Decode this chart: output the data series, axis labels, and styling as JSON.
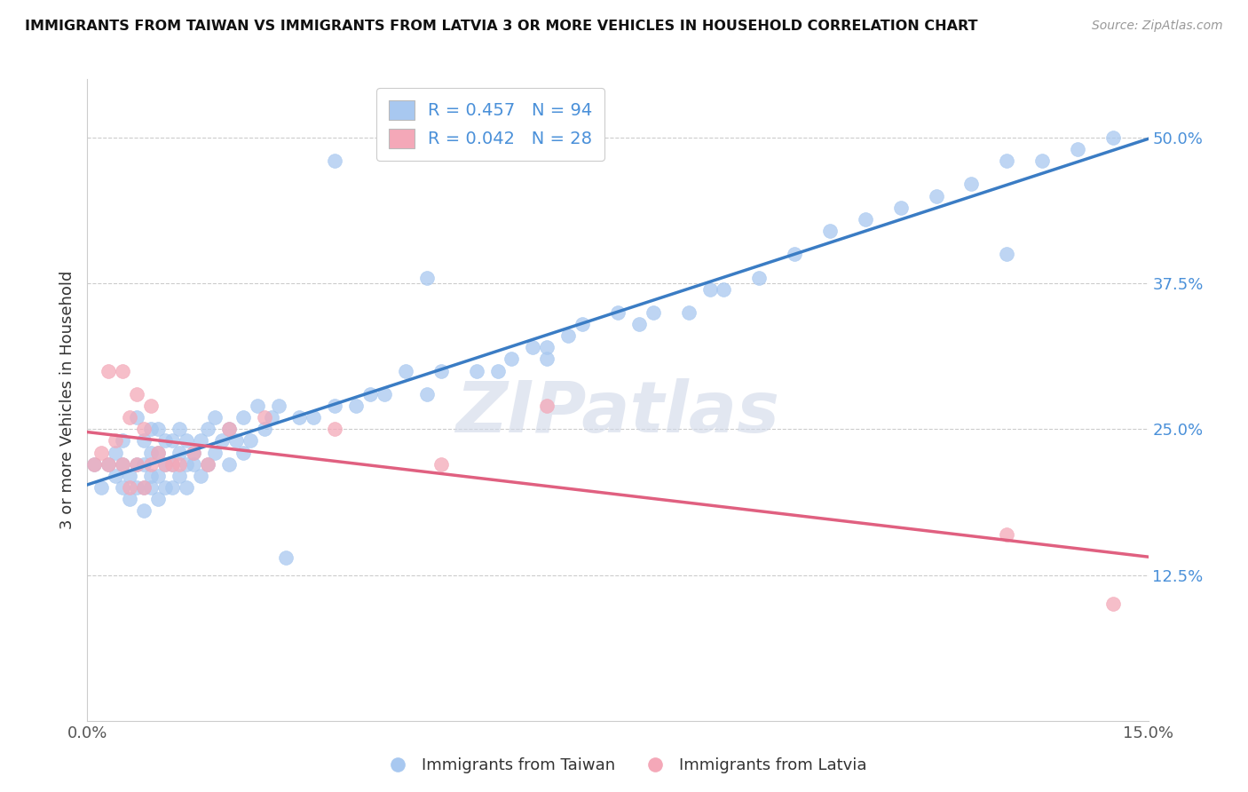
{
  "title": "IMMIGRANTS FROM TAIWAN VS IMMIGRANTS FROM LATVIA 3 OR MORE VEHICLES IN HOUSEHOLD CORRELATION CHART",
  "source": "Source: ZipAtlas.com",
  "ylabel": "3 or more Vehicles in Household",
  "xlim": [
    0.0,
    0.15
  ],
  "ylim": [
    0.0,
    0.55
  ],
  "taiwan_color": "#a8c8f0",
  "latvia_color": "#f4a8b8",
  "taiwan_line_color": "#3a7cc4",
  "latvia_line_color": "#e06080",
  "taiwan_R": 0.457,
  "taiwan_N": 94,
  "latvia_R": 0.042,
  "latvia_N": 28,
  "watermark": "ZIPatlas",
  "label_color": "#4a90d9",
  "taiwan_x": [
    0.001,
    0.002,
    0.003,
    0.004,
    0.004,
    0.005,
    0.005,
    0.005,
    0.006,
    0.006,
    0.007,
    0.007,
    0.007,
    0.008,
    0.008,
    0.008,
    0.008,
    0.009,
    0.009,
    0.009,
    0.009,
    0.01,
    0.01,
    0.01,
    0.01,
    0.011,
    0.011,
    0.011,
    0.012,
    0.012,
    0.012,
    0.013,
    0.013,
    0.013,
    0.014,
    0.014,
    0.014,
    0.015,
    0.015,
    0.016,
    0.016,
    0.017,
    0.017,
    0.018,
    0.018,
    0.019,
    0.02,
    0.02,
    0.021,
    0.022,
    0.022,
    0.023,
    0.024,
    0.025,
    0.026,
    0.027,
    0.028,
    0.03,
    0.032,
    0.035,
    0.038,
    0.04,
    0.042,
    0.045,
    0.048,
    0.05,
    0.055,
    0.058,
    0.06,
    0.063,
    0.065,
    0.068,
    0.07,
    0.075,
    0.078,
    0.08,
    0.085,
    0.088,
    0.09,
    0.095,
    0.1,
    0.105,
    0.11,
    0.115,
    0.12,
    0.125,
    0.13,
    0.135,
    0.14,
    0.145,
    0.035,
    0.048,
    0.065,
    0.13
  ],
  "taiwan_y": [
    0.22,
    0.2,
    0.22,
    0.21,
    0.23,
    0.2,
    0.22,
    0.24,
    0.19,
    0.21,
    0.2,
    0.22,
    0.26,
    0.18,
    0.2,
    0.22,
    0.24,
    0.2,
    0.21,
    0.23,
    0.25,
    0.19,
    0.21,
    0.23,
    0.25,
    0.2,
    0.22,
    0.24,
    0.2,
    0.22,
    0.24,
    0.21,
    0.23,
    0.25,
    0.2,
    0.22,
    0.24,
    0.22,
    0.23,
    0.21,
    0.24,
    0.22,
    0.25,
    0.23,
    0.26,
    0.24,
    0.22,
    0.25,
    0.24,
    0.23,
    0.26,
    0.24,
    0.27,
    0.25,
    0.26,
    0.27,
    0.14,
    0.26,
    0.26,
    0.27,
    0.27,
    0.28,
    0.28,
    0.3,
    0.28,
    0.3,
    0.3,
    0.3,
    0.31,
    0.32,
    0.31,
    0.33,
    0.34,
    0.35,
    0.34,
    0.35,
    0.35,
    0.37,
    0.37,
    0.38,
    0.4,
    0.42,
    0.43,
    0.44,
    0.45,
    0.46,
    0.48,
    0.48,
    0.49,
    0.5,
    0.48,
    0.38,
    0.32,
    0.4
  ],
  "latvia_x": [
    0.001,
    0.002,
    0.003,
    0.003,
    0.004,
    0.005,
    0.005,
    0.006,
    0.006,
    0.007,
    0.007,
    0.008,
    0.008,
    0.009,
    0.009,
    0.01,
    0.011,
    0.012,
    0.013,
    0.015,
    0.017,
    0.02,
    0.025,
    0.035,
    0.05,
    0.065,
    0.13,
    0.145
  ],
  "latvia_y": [
    0.22,
    0.23,
    0.22,
    0.3,
    0.24,
    0.22,
    0.3,
    0.2,
    0.26,
    0.22,
    0.28,
    0.2,
    0.25,
    0.22,
    0.27,
    0.23,
    0.22,
    0.22,
    0.22,
    0.23,
    0.22,
    0.25,
    0.26,
    0.25,
    0.22,
    0.27,
    0.16,
    0.1
  ]
}
